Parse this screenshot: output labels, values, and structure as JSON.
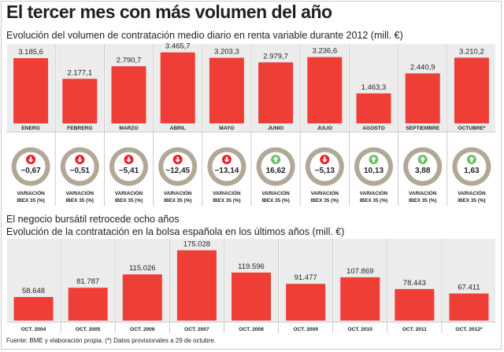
{
  "header": {
    "title": "El tercer mes con más volumen del año",
    "subtitle": "Evolución del volumen de contratación medio diario en renta variable durante 2012 (mill. €)"
  },
  "section2": {
    "title": "El negocio bursátil retrocede ocho años",
    "subtitle": "Evolución de la contratación en la bolsa española en los últimos años (mill. €)"
  },
  "footer": {
    "source": "Fuente: BME y elaboración propia. (*) Datos provisionales a 29 de octubre."
  },
  "colors": {
    "bar": "#ef3e36",
    "panel": "#ececec",
    "ring": "#b1a897",
    "down": "#ed1c24",
    "up": "#6cc068"
  },
  "chart_data": [
    {
      "type": "bar",
      "categories": [
        "ENERO",
        "FEBRERO",
        "MARZO",
        "ABRIL",
        "MAYO",
        "JUNIO",
        "JULIO",
        "AGOSTO",
        "SEPTIEMBRE",
        "OCTUBRE*"
      ],
      "values": [
        3185.6,
        2177.1,
        2790.7,
        3465.7,
        3203.3,
        2979.7,
        3236.6,
        1463.3,
        2440.9,
        3210.2
      ],
      "labels": [
        "3.185,6",
        "2.177,1",
        "2.790,7",
        "3.465,7",
        "3.203,3",
        "2.979,7",
        "3.236,6",
        "1.463,3",
        "2.440,9",
        "3.210,2"
      ],
      "ylim": [
        0,
        3800
      ],
      "ibex_variation": {
        "values": [
          -0.67,
          -0.51,
          -5.41,
          -12.45,
          -13.14,
          16.62,
          -5.13,
          10.13,
          3.88,
          1.63
        ],
        "labels": [
          "−0,67",
          "−0,51",
          "−5,41",
          "−12,45",
          "−13,14",
          "16,62",
          "−5,13",
          "10,13",
          "3,88",
          "1,63"
        ],
        "caption_line1": "VARIACIÓN",
        "caption_line2": "IBEX 35 (%)"
      }
    },
    {
      "type": "bar",
      "categories": [
        "OCT. 2004",
        "OCT. 2005",
        "OCT. 2006",
        "OCT. 2007",
        "OCT. 2008",
        "OCT. 2009",
        "OCT. 2010",
        "OCT. 2011",
        "OCT. 2012*"
      ],
      "values": [
        58648,
        81787,
        115026,
        175028,
        119596,
        91477,
        107869,
        78443,
        67411
      ],
      "labels": [
        "58.648",
        "81.787",
        "115.026",
        "175.028",
        "119.596",
        "91.477",
        "107.869",
        "78.443",
        "67.411"
      ],
      "ylim": [
        0,
        180000
      ]
    }
  ]
}
